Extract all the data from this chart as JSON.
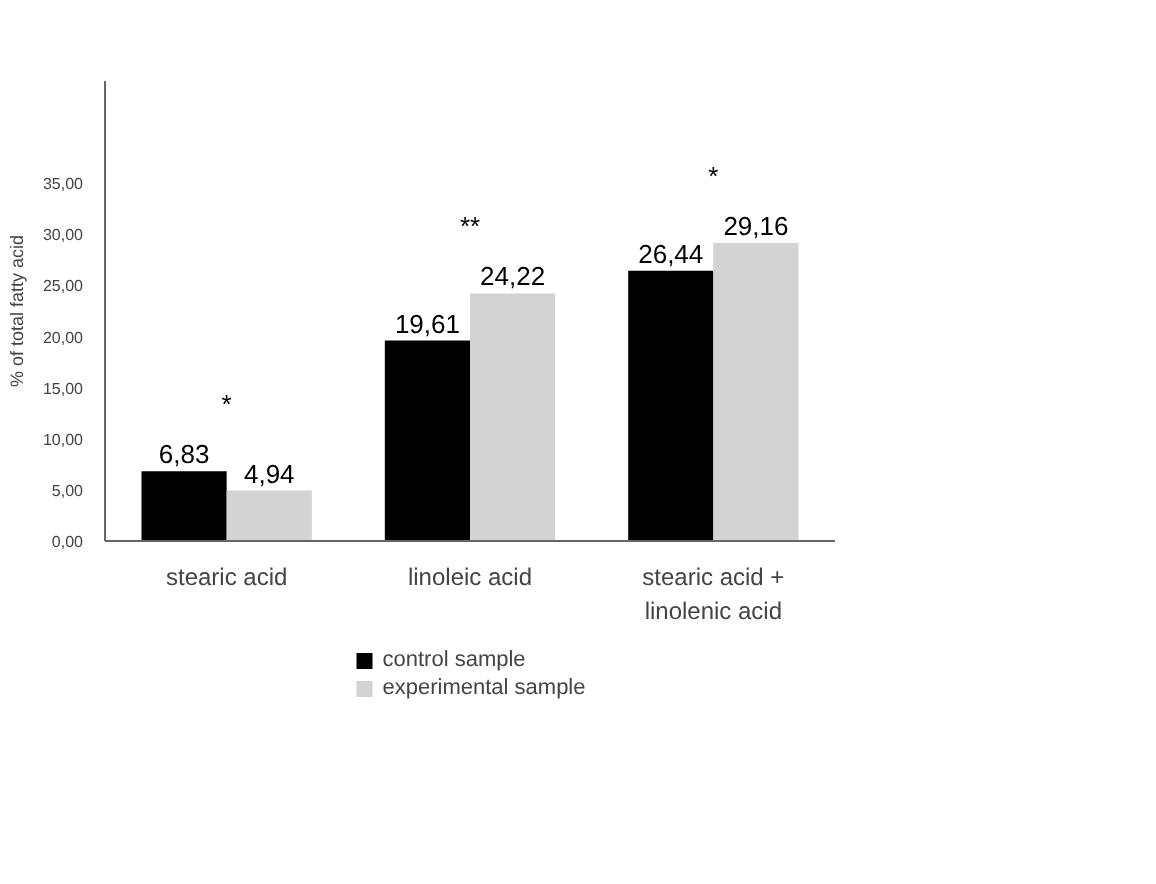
{
  "chart_data": {
    "type": "bar",
    "ylabel": "% of total fatty acid",
    "categories": [
      "stearic acid",
      "linoleic acid",
      "stearic acid +\nlinolenic acid"
    ],
    "series": [
      {
        "name": "control sample",
        "color": "#000000",
        "values": [
          6.83,
          19.61,
          26.44
        ],
        "value_labels": [
          "6,83",
          "19,61",
          "26,44"
        ]
      },
      {
        "name": "experimental sample",
        "color": "#d3d3d3",
        "values": [
          4.94,
          24.22,
          29.16
        ],
        "value_labels": [
          "4,94",
          "24,22",
          "29,16"
        ]
      }
    ],
    "ylim": [
      0,
      45
    ],
    "yticks": [
      {
        "value": 0,
        "label": "0,00"
      },
      {
        "value": 5,
        "label": "5,00"
      },
      {
        "value": 10,
        "label": "10,00"
      },
      {
        "value": 15,
        "label": "15,00"
      },
      {
        "value": 20,
        "label": "20,00"
      },
      {
        "value": 25,
        "label": "25,00"
      },
      {
        "value": 30,
        "label": "30,00"
      },
      {
        "value": 35,
        "label": "35,00"
      }
    ],
    "annotations": [
      "*",
      "**",
      "*"
    ],
    "grid": false,
    "legend": "bottom"
  }
}
